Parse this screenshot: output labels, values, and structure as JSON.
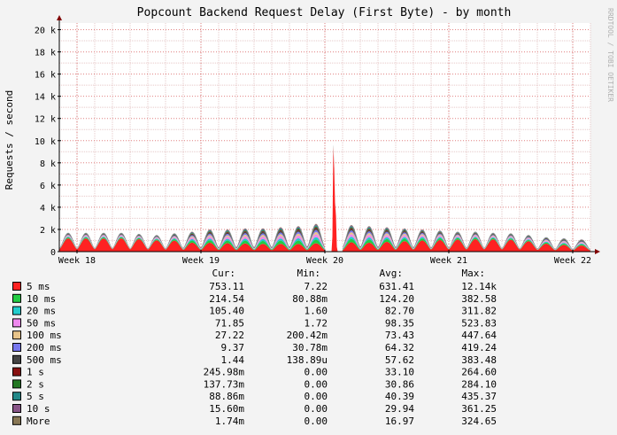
{
  "chart_data": {
    "type": "area",
    "title": "Popcount Backend Request Delay (First Byte) - by month",
    "ylabel": "Requests / second",
    "watermark": "RRDTOOL / TOBI OETIKER",
    "ylim": [
      0,
      20600
    ],
    "y_ticks": [
      {
        "value": 0,
        "label": "0"
      },
      {
        "value": 2000,
        "label": "2 k"
      },
      {
        "value": 4000,
        "label": "4 k"
      },
      {
        "value": 6000,
        "label": "6 k"
      },
      {
        "value": 8000,
        "label": "8 k"
      },
      {
        "value": 10000,
        "label": "10 k"
      },
      {
        "value": 12000,
        "label": "12 k"
      },
      {
        "value": 14000,
        "label": "14 k"
      },
      {
        "value": 16000,
        "label": "16 k"
      },
      {
        "value": 18000,
        "label": "18 k"
      },
      {
        "value": 20000,
        "label": "20 k"
      }
    ],
    "xlim": [
      0,
      30
    ],
    "x_ticks": [
      {
        "value": 1.0,
        "label": "Week 18"
      },
      {
        "value": 8.0,
        "label": "Week 19"
      },
      {
        "value": 15.0,
        "label": "Week 20"
      },
      {
        "value": 22.0,
        "label": "Week 21"
      },
      {
        "value": 29.0,
        "label": "Week 22"
      }
    ],
    "grid": true,
    "legend_headers": [
      "Cur:",
      "Min:",
      "Avg:",
      "Max:"
    ],
    "series": [
      {
        "name": "5 ms",
        "color": "#ff2222",
        "cur": "753.11",
        "min": "7.22",
        "avg": "631.41",
        "max": "12.14k"
      },
      {
        "name": "10 ms",
        "color": "#22cc44",
        "cur": "214.54",
        "min": "80.88m",
        "avg": "124.20",
        "max": "382.58"
      },
      {
        "name": "20 ms",
        "color": "#22cccc",
        "cur": "105.40",
        "min": "1.60",
        "avg": "82.70",
        "max": "311.82"
      },
      {
        "name": "50 ms",
        "color": "#ee88ee",
        "cur": "71.85",
        "min": "1.72",
        "avg": "98.35",
        "max": "523.83"
      },
      {
        "name": "100 ms",
        "color": "#e8c48a",
        "cur": "27.22",
        "min": "200.42m",
        "avg": "73.43",
        "max": "447.64"
      },
      {
        "name": "200 ms",
        "color": "#7777ee",
        "cur": "9.37",
        "min": "30.78m",
        "avg": "64.32",
        "max": "419.24"
      },
      {
        "name": "500 ms",
        "color": "#444444",
        "cur": "1.44",
        "min": "138.89u",
        "avg": "57.62",
        "max": "383.48"
      },
      {
        "name": "1 s",
        "color": "#881111",
        "cur": "245.98m",
        "min": "0.00",
        "avg": "33.10",
        "max": "264.60"
      },
      {
        "name": "2 s",
        "color": "#227722",
        "cur": "137.73m",
        "min": "0.00",
        "avg": "30.86",
        "max": "284.10"
      },
      {
        "name": "5 s",
        "color": "#228888",
        "cur": "88.86m",
        "min": "0.00",
        "avg": "40.39",
        "max": "435.37"
      },
      {
        "name": "10 s",
        "color": "#885588",
        "cur": "15.60m",
        "min": "0.00",
        "avg": "29.94",
        "max": "361.25"
      },
      {
        "name": "More",
        "color": "#887755",
        "cur": "1.74m",
        "min": "0.00",
        "avg": "16.97",
        "max": "324.65"
      }
    ],
    "daily_peaks": [
      {
        "day": 0.5,
        "total": 1700,
        "fast_share": 0.7
      },
      {
        "day": 1.5,
        "total": 1700,
        "fast_share": 0.7
      },
      {
        "day": 2.5,
        "total": 1700,
        "fast_share": 0.7
      },
      {
        "day": 3.5,
        "total": 1700,
        "fast_share": 0.7
      },
      {
        "day": 4.5,
        "total": 1600,
        "fast_share": 0.7
      },
      {
        "day": 5.5,
        "total": 1500,
        "fast_share": 0.68
      },
      {
        "day": 6.5,
        "total": 1650,
        "fast_share": 0.6
      },
      {
        "day": 7.5,
        "total": 1800,
        "fast_share": 0.45
      },
      {
        "day": 8.5,
        "total": 2000,
        "fast_share": 0.4
      },
      {
        "day": 9.5,
        "total": 2000,
        "fast_share": 0.38
      },
      {
        "day": 10.5,
        "total": 2100,
        "fast_share": 0.35
      },
      {
        "day": 11.5,
        "total": 2100,
        "fast_share": 0.33
      },
      {
        "day": 12.5,
        "total": 2200,
        "fast_share": 0.32
      },
      {
        "day": 13.5,
        "total": 2300,
        "fast_share": 0.3
      },
      {
        "day": 14.5,
        "total": 2500,
        "fast_share": 0.3
      },
      {
        "day": 15.5,
        "total": 12400,
        "fast_share": 0.97
      },
      {
        "day": 16.5,
        "total": 2400,
        "fast_share": 0.35
      },
      {
        "day": 17.5,
        "total": 2300,
        "fast_share": 0.35
      },
      {
        "day": 18.5,
        "total": 2200,
        "fast_share": 0.4
      },
      {
        "day": 19.5,
        "total": 2100,
        "fast_share": 0.45
      },
      {
        "day": 20.5,
        "total": 2000,
        "fast_share": 0.5
      },
      {
        "day": 21.5,
        "total": 1900,
        "fast_share": 0.55
      },
      {
        "day": 22.5,
        "total": 1800,
        "fast_share": 0.6
      },
      {
        "day": 23.5,
        "total": 1800,
        "fast_share": 0.62
      },
      {
        "day": 24.5,
        "total": 1700,
        "fast_share": 0.65
      },
      {
        "day": 25.5,
        "total": 1650,
        "fast_share": 0.65
      },
      {
        "day": 26.5,
        "total": 1500,
        "fast_share": 0.62
      },
      {
        "day": 27.5,
        "total": 1300,
        "fast_share": 0.55
      },
      {
        "day": 28.5,
        "total": 1200,
        "fast_share": 0.5
      },
      {
        "day": 29.5,
        "total": 1100,
        "fast_share": 0.5
      }
    ]
  }
}
